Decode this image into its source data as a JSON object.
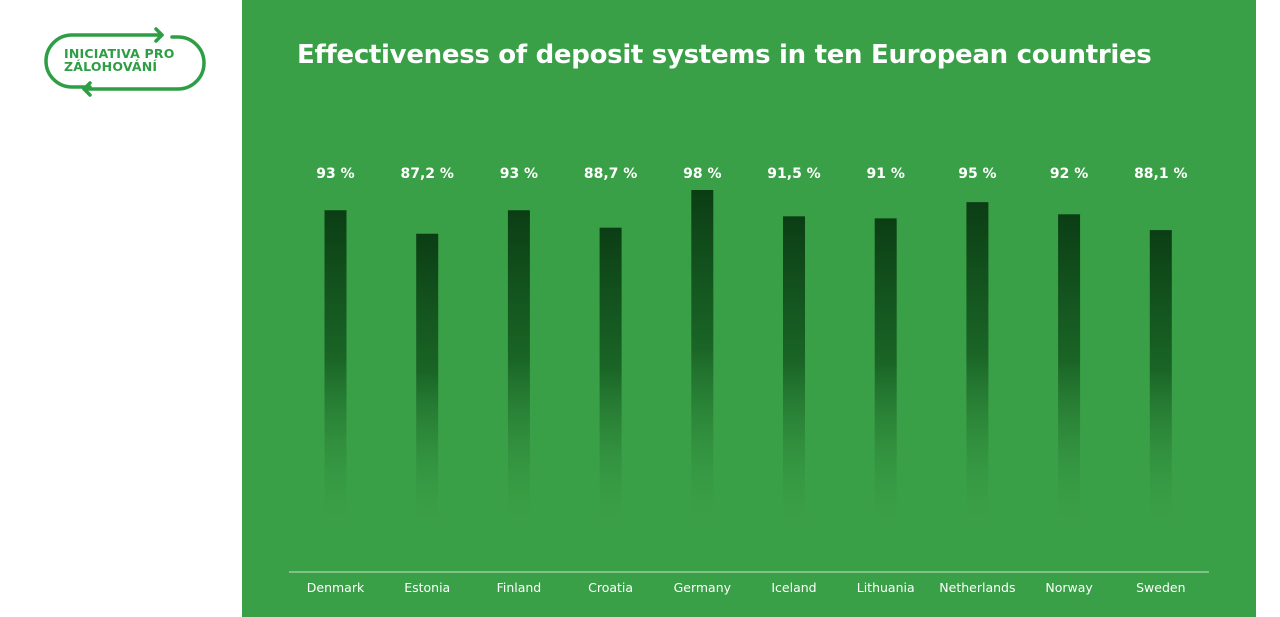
{
  "logo": {
    "line1": "INICIATIVA PRO",
    "line2": "ZÁLOHOVÁNÍ"
  },
  "colors": {
    "panel": "#3aa047",
    "bar_top": "#0b3d14",
    "text": "#ffffff",
    "logo": "#2e9e45"
  },
  "chart_data": {
    "type": "bar",
    "title": "Effectiveness of deposit systems in ten European countries",
    "categories": [
      "Denmark",
      "Estonia",
      "Finland",
      "Croatia",
      "Germany",
      "Iceland",
      "Lithuania",
      "Netherlands",
      "Norway",
      "Sweden"
    ],
    "values": [
      93,
      87.2,
      93,
      88.7,
      98,
      91.5,
      91,
      95,
      92,
      88.1
    ],
    "value_labels": [
      "93 %",
      "87,2 %",
      "93 %",
      "88,7 %",
      "98 %",
      "91,5 %",
      "91 %",
      "95 %",
      "92 %",
      "88,1 %"
    ],
    "xlabel": "",
    "ylabel": "",
    "grid": false,
    "legend": "none"
  }
}
